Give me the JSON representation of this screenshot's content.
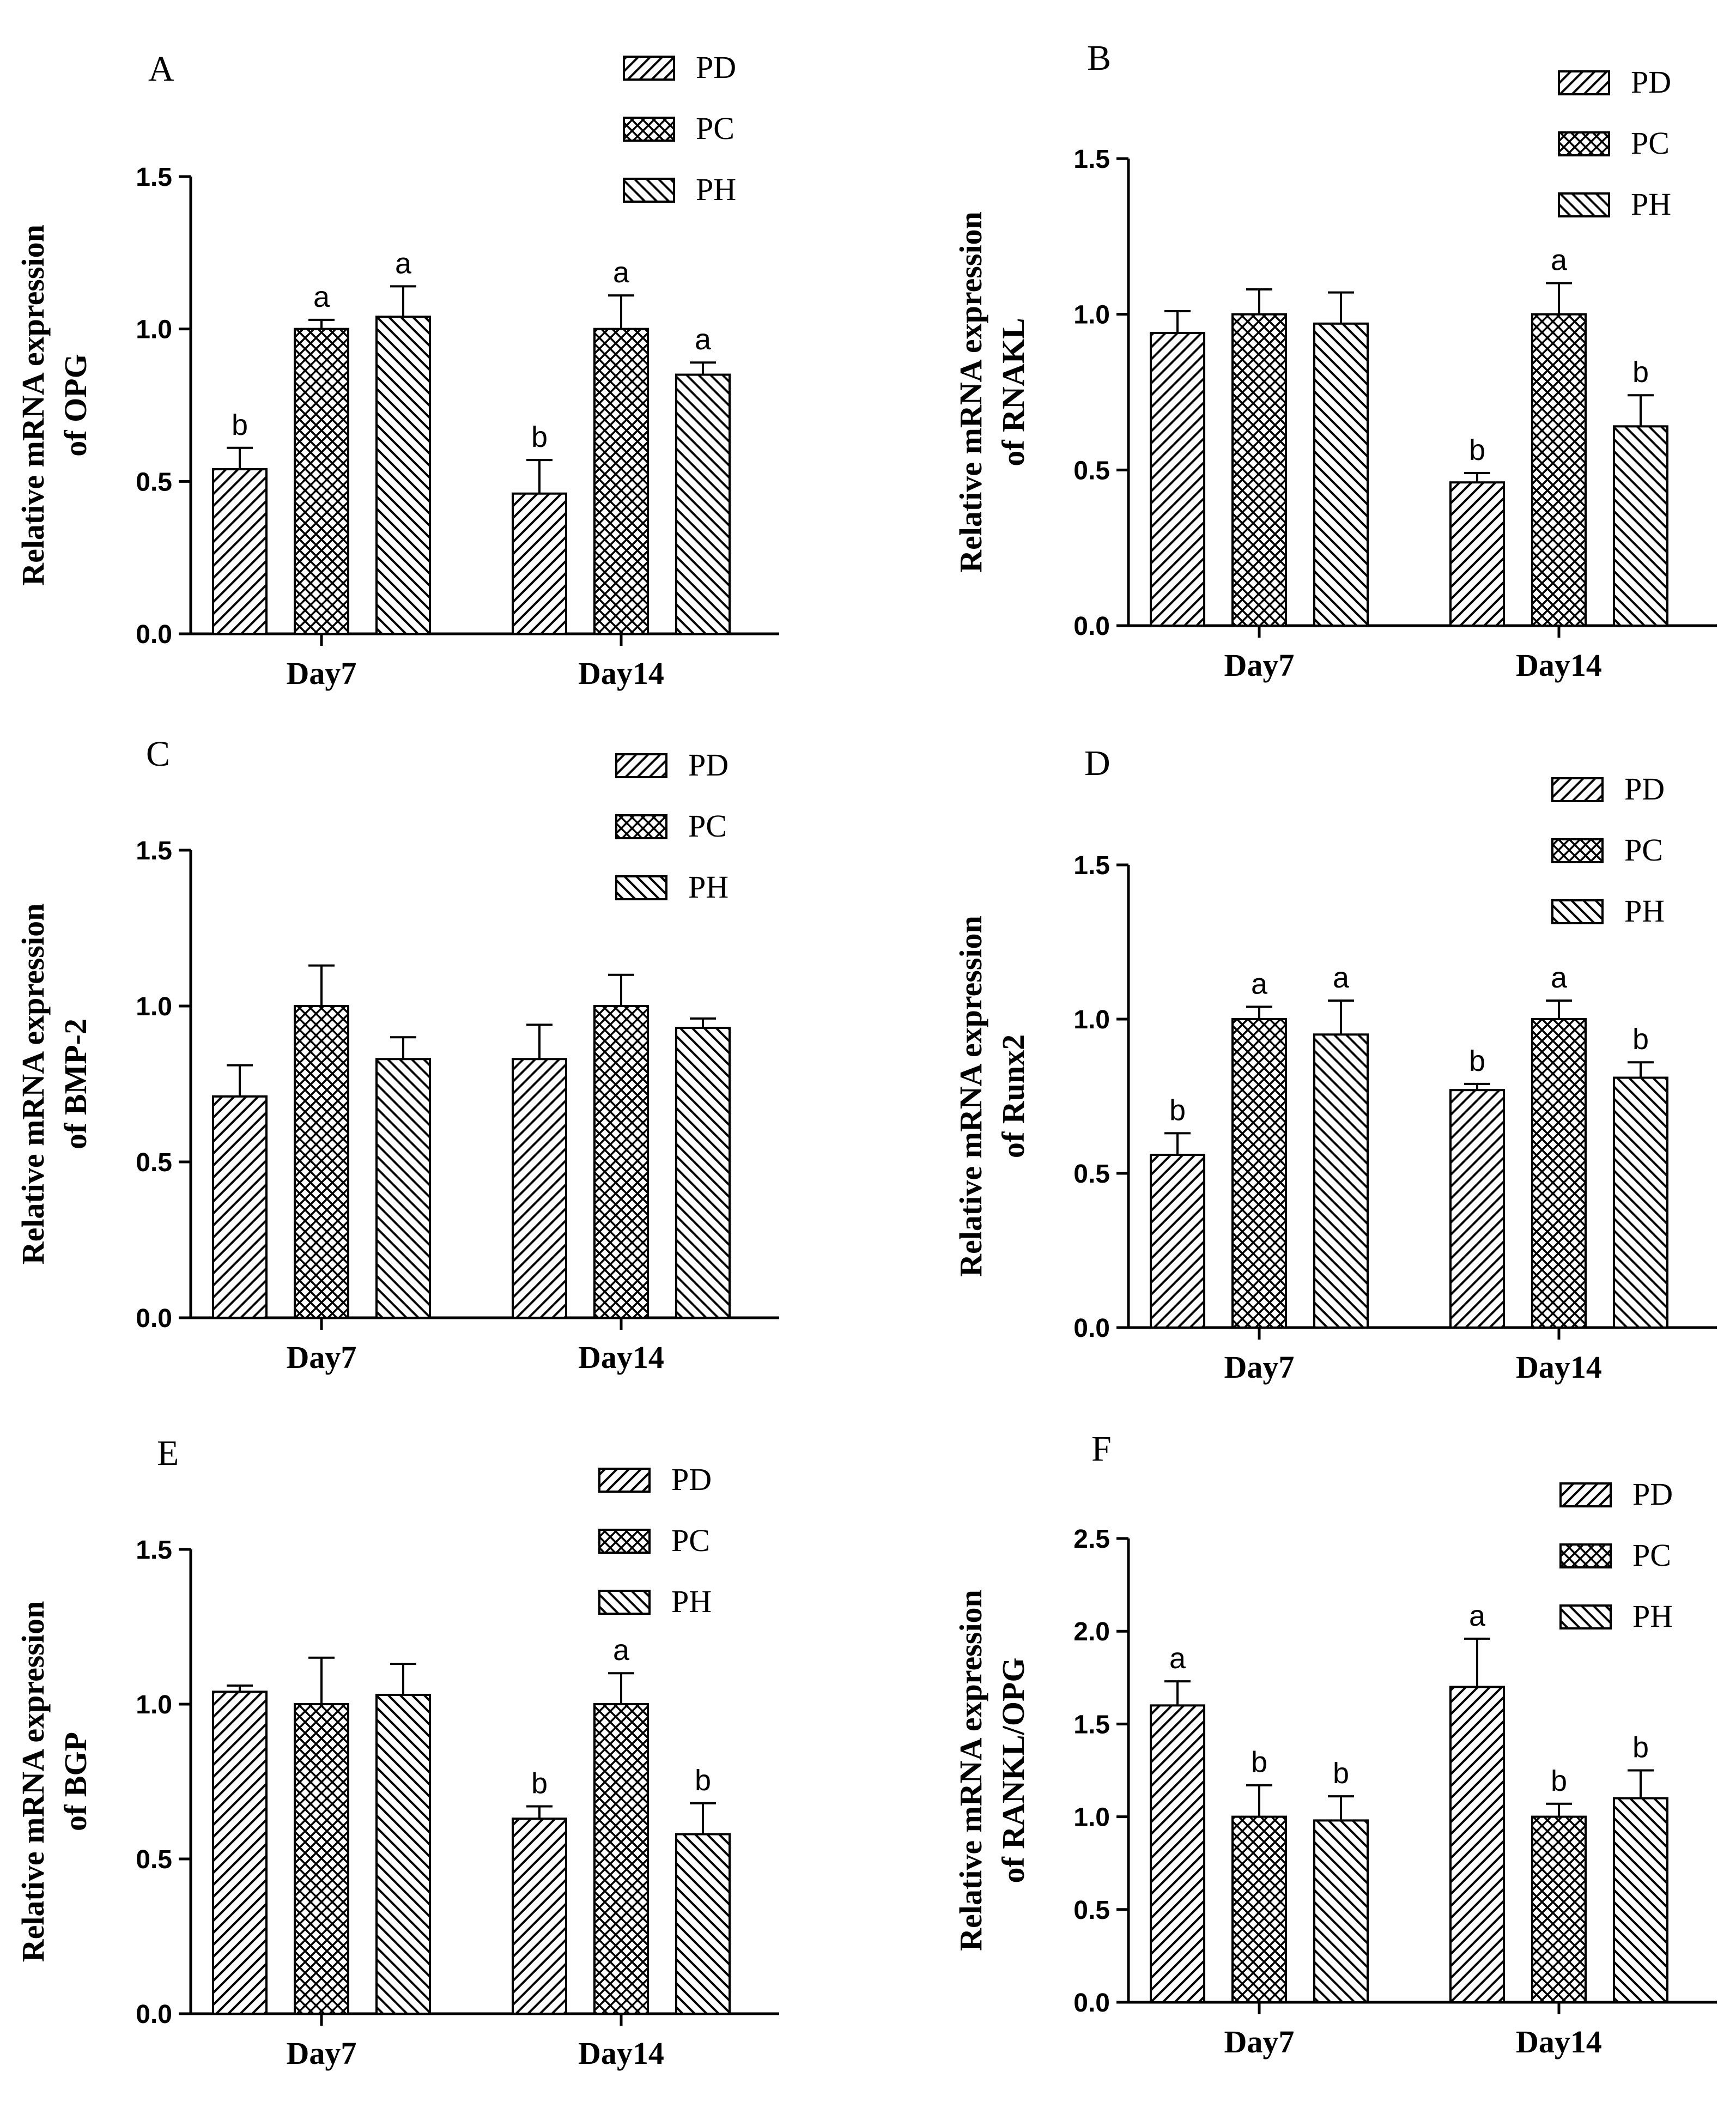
{
  "chart_data": [
    {
      "type": "bar",
      "panel": "A",
      "categories": [
        "Day7",
        "Day14"
      ],
      "series": [
        {
          "name": "PD",
          "values": [
            0.54,
            0.46
          ],
          "errors": [
            0.07,
            0.11
          ],
          "labels": [
            "b",
            "b"
          ]
        },
        {
          "name": "PC",
          "values": [
            1.0,
            1.0
          ],
          "errors": [
            0.03,
            0.11
          ],
          "labels": [
            "a",
            "a"
          ]
        },
        {
          "name": "PH",
          "values": [
            1.04,
            0.85
          ],
          "errors": [
            0.1,
            0.04
          ],
          "labels": [
            "a",
            "a"
          ]
        }
      ],
      "ylabel": [
        "Relative mRNA expression",
        "of OPG"
      ],
      "ylim": [
        0,
        1.5
      ],
      "yticks": [
        "0.0",
        "0.5",
        "1.0",
        "1.5"
      ]
    },
    {
      "type": "bar",
      "panel": "B",
      "categories": [
        "Day7",
        "Day14"
      ],
      "series": [
        {
          "name": "PD",
          "values": [
            0.94,
            0.46
          ],
          "errors": [
            0.07,
            0.03
          ],
          "labels": [
            "",
            "b"
          ]
        },
        {
          "name": "PC",
          "values": [
            1.0,
            1.0
          ],
          "errors": [
            0.08,
            0.1
          ],
          "labels": [
            "",
            "a"
          ]
        },
        {
          "name": "PH",
          "values": [
            0.97,
            0.64
          ],
          "errors": [
            0.1,
            0.1
          ],
          "labels": [
            "",
            "b"
          ]
        }
      ],
      "ylabel": [
        "Relative mRNA expression",
        "of RNAKL"
      ],
      "ylim": [
        0,
        1.5
      ],
      "yticks": [
        "0.0",
        "0.5",
        "1.0",
        "1.5"
      ]
    },
    {
      "type": "bar",
      "panel": "C",
      "categories": [
        "Day7",
        "Day14"
      ],
      "series": [
        {
          "name": "PD",
          "values": [
            0.71,
            0.83
          ],
          "errors": [
            0.1,
            0.11
          ],
          "labels": [
            "",
            ""
          ]
        },
        {
          "name": "PC",
          "values": [
            1.0,
            1.0
          ],
          "errors": [
            0.13,
            0.1
          ],
          "labels": [
            "",
            ""
          ]
        },
        {
          "name": "PH",
          "values": [
            0.83,
            0.93
          ],
          "errors": [
            0.07,
            0.03
          ],
          "labels": [
            "",
            ""
          ]
        }
      ],
      "ylabel": [
        "Relative mRNA expression",
        "of BMP-2"
      ],
      "ylim": [
        0,
        1.5
      ],
      "yticks": [
        "0.0",
        "0.5",
        "1.0",
        "1.5"
      ]
    },
    {
      "type": "bar",
      "panel": "D",
      "categories": [
        "Day7",
        "Day14"
      ],
      "series": [
        {
          "name": "PD",
          "values": [
            0.56,
            0.77
          ],
          "errors": [
            0.07,
            0.02
          ],
          "labels": [
            "b",
            "b"
          ]
        },
        {
          "name": "PC",
          "values": [
            1.0,
            1.0
          ],
          "errors": [
            0.04,
            0.06
          ],
          "labels": [
            "a",
            "a"
          ]
        },
        {
          "name": "PH",
          "values": [
            0.95,
            0.81
          ],
          "errors": [
            0.11,
            0.05
          ],
          "labels": [
            "a",
            "b"
          ]
        }
      ],
      "ylabel": [
        "Relative mRNA expression",
        "of Runx2"
      ],
      "ylim": [
        0,
        1.5
      ],
      "yticks": [
        "0.0",
        "0.5",
        "1.0",
        "1.5"
      ]
    },
    {
      "type": "bar",
      "panel": "E",
      "categories": [
        "Day7",
        "Day14"
      ],
      "series": [
        {
          "name": "PD",
          "values": [
            1.04,
            0.63
          ],
          "errors": [
            0.02,
            0.04
          ],
          "labels": [
            "",
            "b"
          ]
        },
        {
          "name": "PC",
          "values": [
            1.0,
            1.0
          ],
          "errors": [
            0.15,
            0.1
          ],
          "labels": [
            "",
            "a"
          ]
        },
        {
          "name": "PH",
          "values": [
            1.03,
            0.58
          ],
          "errors": [
            0.1,
            0.1
          ],
          "labels": [
            "",
            "b"
          ]
        }
      ],
      "ylabel": [
        "Relative mRNA expression",
        "of BGP"
      ],
      "ylim": [
        0,
        1.5
      ],
      "yticks": [
        "0.0",
        "0.5",
        "1.0",
        "1.5"
      ]
    },
    {
      "type": "bar",
      "panel": "F",
      "categories": [
        "Day7",
        "Day14"
      ],
      "series": [
        {
          "name": "PD",
          "values": [
            1.6,
            1.7
          ],
          "errors": [
            0.13,
            0.26
          ],
          "labels": [
            "a",
            "a"
          ]
        },
        {
          "name": "PC",
          "values": [
            1.0,
            1.0
          ],
          "errors": [
            0.17,
            0.07
          ],
          "labels": [
            "b",
            "b"
          ]
        },
        {
          "name": "PH",
          "values": [
            0.98,
            1.1
          ],
          "errors": [
            0.13,
            0.15
          ],
          "labels": [
            "b",
            "b"
          ]
        }
      ],
      "ylabel": [
        "Relative mRNA expression",
        "of RANKL/OPG"
      ],
      "ylim": [
        0,
        2.5
      ],
      "yticks": [
        "0.0",
        "0.5",
        "1.0",
        "1.5",
        "2.0",
        "2.5"
      ]
    }
  ]
}
